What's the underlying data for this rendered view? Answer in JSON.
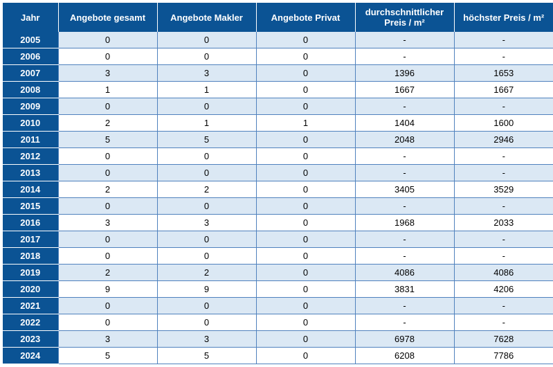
{
  "table": {
    "columns": [
      "Jahr",
      "Angebote gesamt",
      "Angebote Makler",
      "Angebote Privat",
      "durchschnittlicher Preis / m²",
      "höchster Preis / m²"
    ],
    "rows": [
      [
        "2005",
        "0",
        "0",
        "0",
        "-",
        "-"
      ],
      [
        "2006",
        "0",
        "0",
        "0",
        "-",
        "-"
      ],
      [
        "2007",
        "3",
        "3",
        "0",
        "1396",
        "1653"
      ],
      [
        "2008",
        "1",
        "1",
        "0",
        "1667",
        "1667"
      ],
      [
        "2009",
        "0",
        "0",
        "0",
        "-",
        "-"
      ],
      [
        "2010",
        "2",
        "1",
        "1",
        "1404",
        "1600"
      ],
      [
        "2011",
        "5",
        "5",
        "0",
        "2048",
        "2946"
      ],
      [
        "2012",
        "0",
        "0",
        "0",
        "-",
        "-"
      ],
      [
        "2013",
        "0",
        "0",
        "0",
        "-",
        "-"
      ],
      [
        "2014",
        "2",
        "2",
        "0",
        "3405",
        "3529"
      ],
      [
        "2015",
        "0",
        "0",
        "0",
        "-",
        "-"
      ],
      [
        "2016",
        "3",
        "3",
        "0",
        "1968",
        "2033"
      ],
      [
        "2017",
        "0",
        "0",
        "0",
        "-",
        "-"
      ],
      [
        "2018",
        "0",
        "0",
        "0",
        "-",
        "-"
      ],
      [
        "2019",
        "2",
        "2",
        "0",
        "4086",
        "4086"
      ],
      [
        "2020",
        "9",
        "9",
        "0",
        "3831",
        "4206"
      ],
      [
        "2021",
        "0",
        "0",
        "0",
        "-",
        "-"
      ],
      [
        "2022",
        "0",
        "0",
        "0",
        "-",
        "-"
      ],
      [
        "2023",
        "3",
        "3",
        "0",
        "6978",
        "7628"
      ],
      [
        "2024",
        "5",
        "5",
        "0",
        "6208",
        "7786"
      ]
    ],
    "header_bg": "#0b5394",
    "header_text_color": "#ffffff",
    "row_odd_bg": "#dbe8f4",
    "row_even_bg": "#ffffff",
    "border_color": "#4f81bd",
    "font_size": 13
  }
}
